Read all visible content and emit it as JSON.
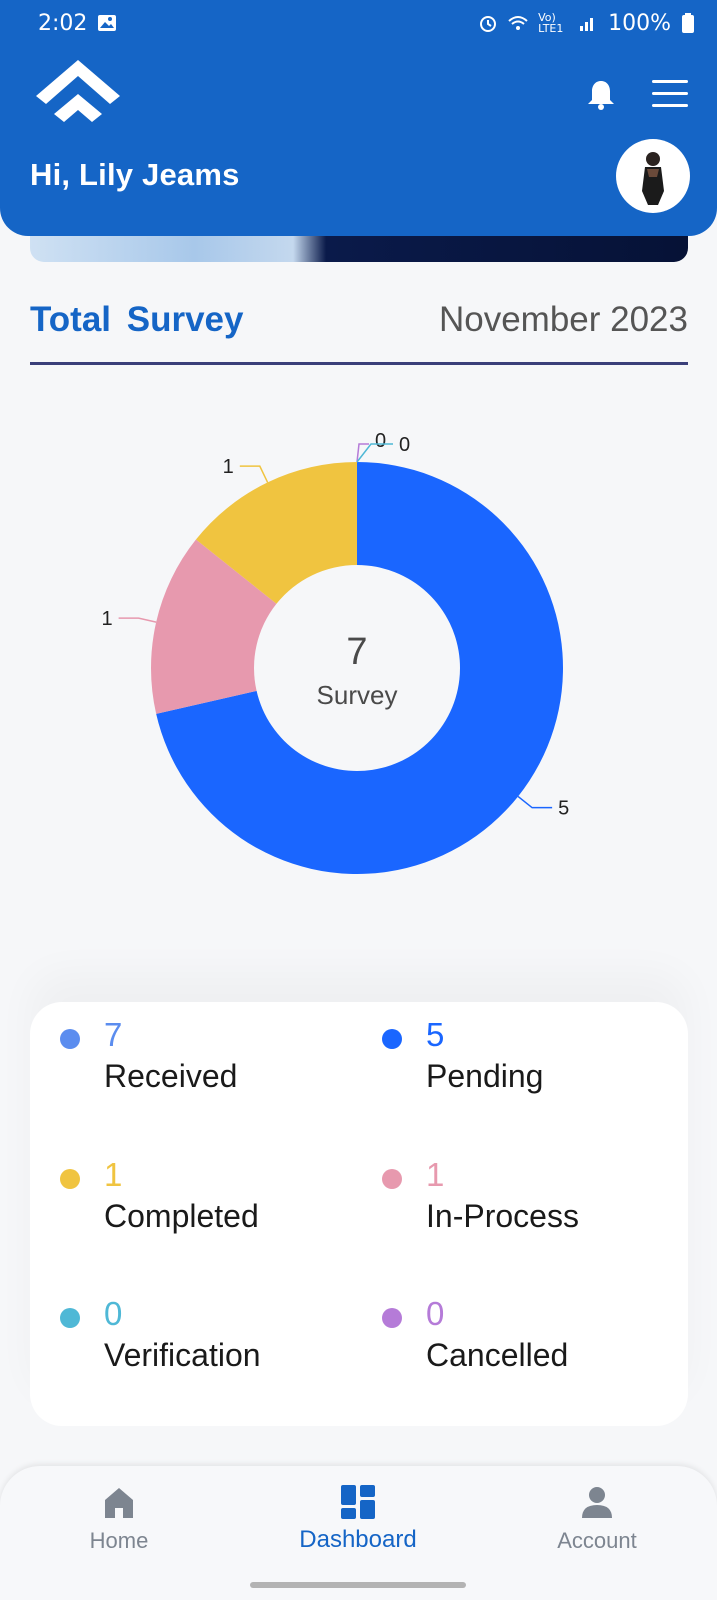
{
  "status_bar": {
    "time": "2:02",
    "network": "Vo) LTE1",
    "battery": "100%"
  },
  "header": {
    "greeting": "Hi, Lily Jeams",
    "brand_color": "#1565c6"
  },
  "icons": {
    "logo": "chevron-up-logo-icon",
    "bell": "bell-icon",
    "menu": "hamburger-menu-icon",
    "avatar": "user-avatar"
  },
  "section": {
    "title": "Total  Survey",
    "date": "November 2023"
  },
  "chart_data": {
    "type": "pie",
    "donut": true,
    "center_value": "7",
    "center_label": "Survey",
    "slices": [
      {
        "name": "Pending",
        "value": 5,
        "color": "#1a66ff",
        "label": "5"
      },
      {
        "name": "In-Process",
        "value": 1,
        "color": "#e799ae",
        "label": "1"
      },
      {
        "name": "Completed",
        "value": 1,
        "color": "#f0c440",
        "label": "1"
      },
      {
        "name": "Cancelled",
        "value": 0,
        "color": "#b57bd8",
        "label": "0"
      },
      {
        "name": "Verification",
        "value": 0,
        "color": "#4fb8d6",
        "label": "0"
      }
    ]
  },
  "legend": {
    "items": [
      {
        "count": "7",
        "label": "Received",
        "color": "#5b8def"
      },
      {
        "count": "5",
        "label": "Pending",
        "color": "#1a66ff"
      },
      {
        "count": "1",
        "label": "Completed",
        "color": "#f0c440"
      },
      {
        "count": "1",
        "label": "In-Process",
        "color": "#e799ae"
      },
      {
        "count": "0",
        "label": "Verification",
        "color": "#4fb8d6"
      },
      {
        "count": "0",
        "label": "Cancelled",
        "color": "#b57bd8"
      }
    ]
  },
  "nav": {
    "items": [
      {
        "label": "Home",
        "icon": "home-icon",
        "active": false
      },
      {
        "label": "Dashboard",
        "icon": "dashboard-icon",
        "active": true
      },
      {
        "label": "Account",
        "icon": "account-icon",
        "active": false
      }
    ],
    "active_color": "#1565c6",
    "inactive_color": "#7d8590"
  }
}
